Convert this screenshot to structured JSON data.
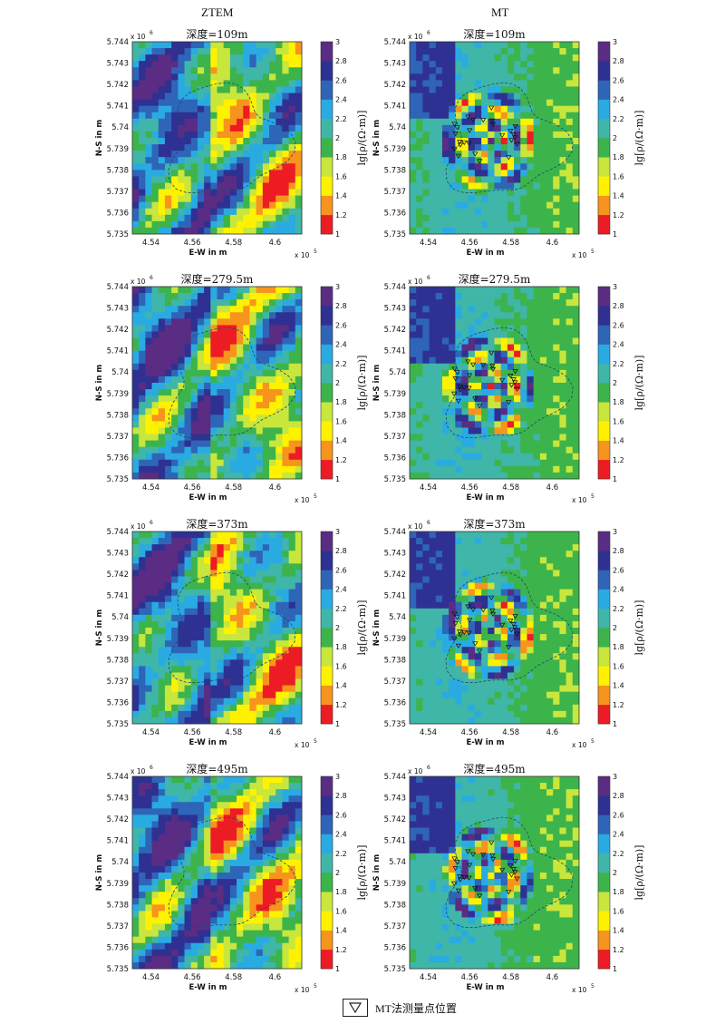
{
  "columns": [
    "ZTEM",
    "MT"
  ],
  "legend": {
    "label": "MT法测量点位置"
  },
  "colorbar": {
    "label": "lg[ρ/(Ω·m)]",
    "ticks": [
      "3",
      "2.8",
      "2.6",
      "2.4",
      "2.2",
      "2",
      "1.8",
      "1.6",
      "1.4",
      "1.2",
      "1"
    ],
    "colors": [
      "#ed1c24",
      "#f7941d",
      "#fff200",
      "#c8e63c",
      "#3cb44b",
      "#3fb6a8",
      "#29abe2",
      "#2e65b8",
      "#2e3192",
      "#5b2c83"
    ]
  },
  "axes": {
    "xlabel": "E-W in m",
    "ylabel": "N-S in m",
    "xticks": [
      "4.54",
      "4.56",
      "4.58",
      "4.6"
    ],
    "yticks": [
      "5.744",
      "5.743",
      "5.742",
      "5.741",
      "5.74",
      "5.739",
      "5.738",
      "5.737",
      "5.736",
      "5.735"
    ],
    "xexp": "x 10",
    "xexp_sup": "5",
    "yexp": "x 10",
    "yexp_sup": "6"
  },
  "chart_data": [
    {
      "type": "heatmap",
      "method": "ZTEM",
      "title": "深度=109m",
      "xlim": [
        4.531,
        4.613
      ],
      "ylim": [
        5.735,
        5.744
      ],
      "clim": [
        1,
        3
      ]
    },
    {
      "type": "heatmap",
      "method": "MT",
      "title": "深度=109m",
      "xlim": [
        4.531,
        4.613
      ],
      "ylim": [
        5.735,
        5.744
      ],
      "clim": [
        1,
        3
      ]
    },
    {
      "type": "heatmap",
      "method": "ZTEM",
      "title": "深度=279.5m",
      "xlim": [
        4.531,
        4.613
      ],
      "ylim": [
        5.735,
        5.744
      ],
      "clim": [
        1,
        3
      ]
    },
    {
      "type": "heatmap",
      "method": "MT",
      "title": "深度=279.5m",
      "xlim": [
        4.531,
        4.613
      ],
      "ylim": [
        5.735,
        5.744
      ],
      "clim": [
        1,
        3
      ]
    },
    {
      "type": "heatmap",
      "method": "ZTEM",
      "title": "深度=373m",
      "xlim": [
        4.531,
        4.613
      ],
      "ylim": [
        5.735,
        5.744
      ],
      "clim": [
        1,
        3
      ]
    },
    {
      "type": "heatmap",
      "method": "MT",
      "title": "深度=373m",
      "xlim": [
        4.531,
        4.613
      ],
      "ylim": [
        5.735,
        5.744
      ],
      "clim": [
        1,
        3
      ]
    },
    {
      "type": "heatmap",
      "method": "ZTEM",
      "title": "深度=495m",
      "xlim": [
        4.531,
        4.613
      ],
      "ylim": [
        5.735,
        5.744
      ],
      "clim": [
        1,
        3
      ]
    },
    {
      "type": "heatmap",
      "method": "MT",
      "title": "深度=495m",
      "xlim": [
        4.531,
        4.613
      ],
      "ylim": [
        5.735,
        5.744
      ],
      "clim": [
        1,
        3
      ]
    }
  ]
}
